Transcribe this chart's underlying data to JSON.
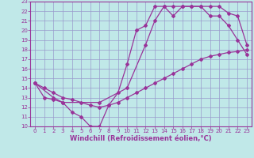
{
  "xlabel": "Windchill (Refroidissement éolien,°C)",
  "bg_color": "#c0e8e8",
  "line_color": "#993399",
  "xlim": [
    -0.5,
    23.5
  ],
  "ylim": [
    10,
    23
  ],
  "yticks": [
    10,
    11,
    12,
    13,
    14,
    15,
    16,
    17,
    18,
    19,
    20,
    21,
    22,
    23
  ],
  "xticks": [
    0,
    1,
    2,
    3,
    4,
    5,
    6,
    7,
    8,
    9,
    10,
    11,
    12,
    13,
    14,
    15,
    16,
    17,
    18,
    19,
    20,
    21,
    22,
    23
  ],
  "line1_x": [
    0,
    1,
    2,
    3,
    4,
    5,
    6,
    7,
    8,
    9,
    10,
    11,
    12,
    13,
    14,
    15,
    16,
    17,
    18,
    19,
    20,
    21,
    22,
    23
  ],
  "line1_y": [
    14.5,
    13.0,
    12.8,
    12.5,
    11.5,
    11.0,
    10.0,
    10.0,
    12.2,
    13.5,
    16.5,
    20.0,
    20.5,
    22.5,
    22.5,
    21.5,
    22.5,
    22.5,
    22.5,
    21.5,
    21.5,
    20.5,
    19.0,
    17.5
  ],
  "line2_x": [
    0,
    1,
    2,
    3,
    4,
    5,
    6,
    7,
    8,
    9,
    10,
    11,
    12,
    13,
    14,
    15,
    16,
    17,
    18,
    19,
    20,
    21,
    22,
    23
  ],
  "line2_y": [
    14.5,
    14.0,
    13.5,
    13.0,
    12.8,
    12.5,
    12.2,
    12.0,
    12.2,
    12.5,
    13.0,
    13.5,
    14.0,
    14.5,
    15.0,
    15.5,
    16.0,
    16.5,
    17.0,
    17.3,
    17.5,
    17.7,
    17.8,
    18.0
  ],
  "line3_x": [
    0,
    2,
    3,
    7,
    10,
    12,
    13,
    14,
    15,
    16,
    17,
    18,
    19,
    20,
    21,
    22,
    23
  ],
  "line3_y": [
    14.5,
    13.0,
    12.5,
    12.5,
    14.0,
    18.5,
    21.0,
    22.5,
    22.5,
    22.5,
    22.5,
    22.5,
    22.5,
    22.5,
    21.8,
    21.5,
    18.5
  ],
  "marker": "D",
  "markersize": 2.0,
  "linewidth": 0.9,
  "grid_color": "#9999cc",
  "tick_fontsize": 5.0,
  "xlabel_fontsize": 6.0
}
